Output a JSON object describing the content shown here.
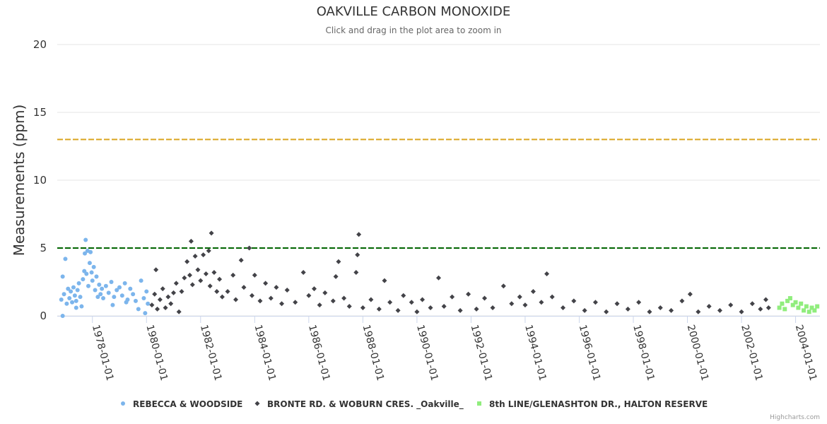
{
  "chart_data": {
    "type": "scatter",
    "title": "OAKVILLE CARBON MONOXIDE",
    "subtitle": "Click and drag in the plot area to zoom in",
    "ylabel": "Measurements (ppm)",
    "xlabel": "",
    "ylim": [
      0,
      20
    ],
    "yticks": [
      0,
      5,
      10,
      15,
      20
    ],
    "xlim": [
      1976.7,
      2004.9
    ],
    "xticks": [
      {
        "value": 1978,
        "label": "1978-01-01"
      },
      {
        "value": 1980,
        "label": "1980-01-01"
      },
      {
        "value": 1982,
        "label": "1982-01-01"
      },
      {
        "value": 1984,
        "label": "1984-01-01"
      },
      {
        "value": 1986,
        "label": "1986-01-01"
      },
      {
        "value": 1988,
        "label": "1988-01-01"
      },
      {
        "value": 1990,
        "label": "1990-01-01"
      },
      {
        "value": 1992,
        "label": "1992-01-01"
      },
      {
        "value": 1994,
        "label": "1994-01-01"
      },
      {
        "value": 1996,
        "label": "1996-01-01"
      },
      {
        "value": 1998,
        "label": "1998-01-01"
      },
      {
        "value": 2000,
        "label": "2000-01-01"
      },
      {
        "value": 2002,
        "label": "2002-01-01"
      },
      {
        "value": 2004,
        "label": "2004-01-01"
      }
    ],
    "grid": true,
    "legend_position": "bottom",
    "plot_lines": [
      {
        "value": 13,
        "color": "#DAA520",
        "style": "dashed"
      },
      {
        "value": 5,
        "color": "#006400",
        "style": "dashed"
      }
    ],
    "series": [
      {
        "name": "REBECCA & WOODSIDE",
        "color": "#7cb5ec",
        "marker": "circle",
        "points": [
          [
            1976.85,
            1.2
          ],
          [
            1976.9,
            2.9
          ],
          [
            1976.95,
            1.6
          ],
          [
            1977.0,
            4.2
          ],
          [
            1977.05,
            0.9
          ],
          [
            1977.1,
            2.0
          ],
          [
            1977.15,
            1.3
          ],
          [
            1977.2,
            1.8
          ],
          [
            1977.25,
            1.0
          ],
          [
            1977.3,
            2.1
          ],
          [
            1977.35,
            1.5
          ],
          [
            1977.4,
            1.1
          ],
          [
            1977.45,
            1.9
          ],
          [
            1977.5,
            2.4
          ],
          [
            1977.55,
            1.4
          ],
          [
            1977.6,
            0.7
          ],
          [
            1977.65,
            2.7
          ],
          [
            1977.7,
            3.3
          ],
          [
            1977.72,
            4.6
          ],
          [
            1977.75,
            5.6
          ],
          [
            1977.78,
            3.1
          ],
          [
            1977.82,
            4.8
          ],
          [
            1977.85,
            2.2
          ],
          [
            1977.9,
            3.9
          ],
          [
            1977.93,
            4.7
          ],
          [
            1977.97,
            3.2
          ],
          [
            1978.0,
            2.6
          ],
          [
            1978.05,
            3.6
          ],
          [
            1978.1,
            1.9
          ],
          [
            1978.15,
            2.9
          ],
          [
            1978.2,
            1.4
          ],
          [
            1978.25,
            2.3
          ],
          [
            1978.3,
            1.6
          ],
          [
            1978.35,
            2.0
          ],
          [
            1978.4,
            1.3
          ],
          [
            1978.5,
            2.2
          ],
          [
            1978.6,
            1.7
          ],
          [
            1978.7,
            2.5
          ],
          [
            1978.8,
            1.4
          ],
          [
            1978.9,
            1.9
          ],
          [
            1979.0,
            2.1
          ],
          [
            1979.1,
            1.5
          ],
          [
            1979.2,
            2.4
          ],
          [
            1979.3,
            1.2
          ],
          [
            1979.4,
            2.0
          ],
          [
            1979.5,
            1.6
          ],
          [
            1979.6,
            1.1
          ],
          [
            1979.7,
            0.5
          ],
          [
            1979.8,
            2.6
          ],
          [
            1979.9,
            1.3
          ],
          [
            1979.95,
            0.2
          ],
          [
            1980.0,
            1.8
          ],
          [
            1980.05,
            0.9
          ],
          [
            1979.25,
            1.0
          ],
          [
            1978.75,
            0.8
          ],
          [
            1977.4,
            0.6
          ],
          [
            1976.9,
            0.0
          ]
        ]
      },
      {
        "name": "BRONTE RD. & WOBURN CRES. _Oakville_",
        "color": "#434348",
        "marker": "diamond",
        "points": [
          [
            1980.2,
            0.8
          ],
          [
            1980.3,
            1.6
          ],
          [
            1980.35,
            3.4
          ],
          [
            1980.4,
            0.5
          ],
          [
            1980.5,
            1.2
          ],
          [
            1980.6,
            2.0
          ],
          [
            1980.7,
            0.6
          ],
          [
            1980.8,
            1.4
          ],
          [
            1980.9,
            0.9
          ],
          [
            1981.0,
            1.7
          ],
          [
            1981.1,
            2.4
          ],
          [
            1981.2,
            0.3
          ],
          [
            1981.3,
            1.8
          ],
          [
            1981.4,
            2.8
          ],
          [
            1981.5,
            4.0
          ],
          [
            1981.6,
            3.0
          ],
          [
            1981.65,
            5.5
          ],
          [
            1981.7,
            2.3
          ],
          [
            1981.8,
            4.4
          ],
          [
            1981.9,
            3.4
          ],
          [
            1982.0,
            2.6
          ],
          [
            1982.1,
            4.5
          ],
          [
            1982.2,
            3.1
          ],
          [
            1982.3,
            4.8
          ],
          [
            1982.35,
            2.2
          ],
          [
            1982.4,
            6.1
          ],
          [
            1982.5,
            3.2
          ],
          [
            1982.6,
            1.8
          ],
          [
            1982.7,
            2.7
          ],
          [
            1982.8,
            1.4
          ],
          [
            1983.0,
            1.8
          ],
          [
            1983.2,
            3.0
          ],
          [
            1983.3,
            1.2
          ],
          [
            1983.5,
            4.1
          ],
          [
            1983.6,
            2.1
          ],
          [
            1983.8,
            5.0
          ],
          [
            1983.9,
            1.5
          ],
          [
            1984.0,
            3.0
          ],
          [
            1984.2,
            1.1
          ],
          [
            1984.4,
            2.4
          ],
          [
            1984.6,
            1.3
          ],
          [
            1984.8,
            2.1
          ],
          [
            1985.0,
            0.9
          ],
          [
            1985.2,
            1.9
          ],
          [
            1985.5,
            1.0
          ],
          [
            1985.8,
            3.2
          ],
          [
            1986.0,
            1.5
          ],
          [
            1986.2,
            2.0
          ],
          [
            1986.4,
            0.8
          ],
          [
            1986.6,
            1.7
          ],
          [
            1986.9,
            1.1
          ],
          [
            1987.0,
            2.9
          ],
          [
            1987.1,
            4.0
          ],
          [
            1987.3,
            1.3
          ],
          [
            1987.5,
            0.7
          ],
          [
            1987.75,
            3.2
          ],
          [
            1987.8,
            4.5
          ],
          [
            1987.85,
            6.0
          ],
          [
            1988.0,
            0.6
          ],
          [
            1988.3,
            1.2
          ],
          [
            1988.6,
            0.5
          ],
          [
            1988.8,
            2.6
          ],
          [
            1989.0,
            1.0
          ],
          [
            1989.3,
            0.4
          ],
          [
            1989.5,
            1.5
          ],
          [
            1989.8,
            1.0
          ],
          [
            1990.0,
            0.3
          ],
          [
            1990.2,
            1.2
          ],
          [
            1990.5,
            0.6
          ],
          [
            1990.8,
            2.8
          ],
          [
            1991.0,
            0.7
          ],
          [
            1991.3,
            1.4
          ],
          [
            1991.6,
            0.4
          ],
          [
            1991.9,
            1.6
          ],
          [
            1992.2,
            0.5
          ],
          [
            1992.5,
            1.3
          ],
          [
            1992.8,
            0.6
          ],
          [
            1993.2,
            2.2
          ],
          [
            1993.5,
            0.9
          ],
          [
            1993.8,
            1.4
          ],
          [
            1994.0,
            0.8
          ],
          [
            1994.3,
            1.8
          ],
          [
            1994.6,
            1.0
          ],
          [
            1994.8,
            3.1
          ],
          [
            1995.0,
            1.4
          ],
          [
            1995.4,
            0.6
          ],
          [
            1995.8,
            1.1
          ],
          [
            1996.2,
            0.4
          ],
          [
            1996.6,
            1.0
          ],
          [
            1997.0,
            0.3
          ],
          [
            1997.4,
            0.9
          ],
          [
            1997.8,
            0.5
          ],
          [
            1998.2,
            1.0
          ],
          [
            1998.6,
            0.3
          ],
          [
            1999.0,
            0.6
          ],
          [
            1999.4,
            0.4
          ],
          [
            1999.8,
            1.1
          ],
          [
            2000.1,
            1.6
          ],
          [
            2000.4,
            0.3
          ],
          [
            2000.8,
            0.7
          ],
          [
            2001.2,
            0.4
          ],
          [
            2001.6,
            0.8
          ],
          [
            2002.0,
            0.3
          ],
          [
            2002.4,
            0.9
          ],
          [
            2002.7,
            0.5
          ],
          [
            2002.9,
            1.2
          ],
          [
            2003.0,
            0.6
          ]
        ]
      },
      {
        "name": "8th LINE/GLENASHTON DR., HALTON RESERVE",
        "color": "#90ed7d",
        "marker": "square",
        "points": [
          [
            2003.4,
            0.6
          ],
          [
            2003.5,
            0.9
          ],
          [
            2003.6,
            0.5
          ],
          [
            2003.7,
            1.1
          ],
          [
            2003.8,
            1.3
          ],
          [
            2003.9,
            0.8
          ],
          [
            2004.0,
            1.0
          ],
          [
            2004.1,
            0.6
          ],
          [
            2004.2,
            0.9
          ],
          [
            2004.3,
            0.4
          ],
          [
            2004.4,
            0.7
          ],
          [
            2004.5,
            0.3
          ],
          [
            2004.6,
            0.6
          ],
          [
            2004.7,
            0.4
          ],
          [
            2004.8,
            0.7
          ]
        ]
      }
    ]
  },
  "credits": "Highcharts.com"
}
